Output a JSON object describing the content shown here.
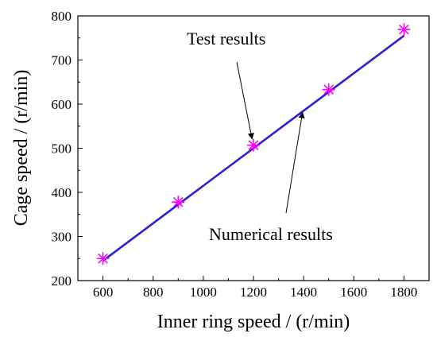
{
  "chart_data": {
    "type": "line",
    "title": "",
    "xlabel": "Inner ring speed / (r/min)",
    "ylabel": "Cage speed / (r/min)",
    "xlim": [
      500,
      1900
    ],
    "ylim": [
      200,
      800
    ],
    "xticks": [
      600,
      800,
      1000,
      1200,
      1400,
      1600,
      1800
    ],
    "yticks": [
      200,
      300,
      400,
      500,
      600,
      700,
      800
    ],
    "xtick_labels": [
      "600",
      "800",
      "1000",
      "1200",
      "1400",
      "1600",
      "1800"
    ],
    "ytick_labels": [
      "200",
      "300",
      "400",
      "500",
      "600",
      "700",
      "800"
    ],
    "grid": false,
    "legend": "none",
    "series": [
      {
        "kind": "line",
        "color": "#2a1ed6",
        "x": [
          600,
          1800
        ],
        "y": [
          245,
          755
        ]
      },
      {
        "kind": "markers",
        "marker": "asterisk",
        "color": "#ff00ff",
        "x": [
          600,
          900,
          1200,
          1500,
          1800
        ],
        "y": [
          250,
          378,
          507,
          633,
          769
        ]
      }
    ],
    "annotations": [
      {
        "text": "Test results",
        "points_to": [
          1200,
          507
        ]
      },
      {
        "text": "Numerical results",
        "points_to": [
          1395,
          590
        ]
      }
    ]
  }
}
